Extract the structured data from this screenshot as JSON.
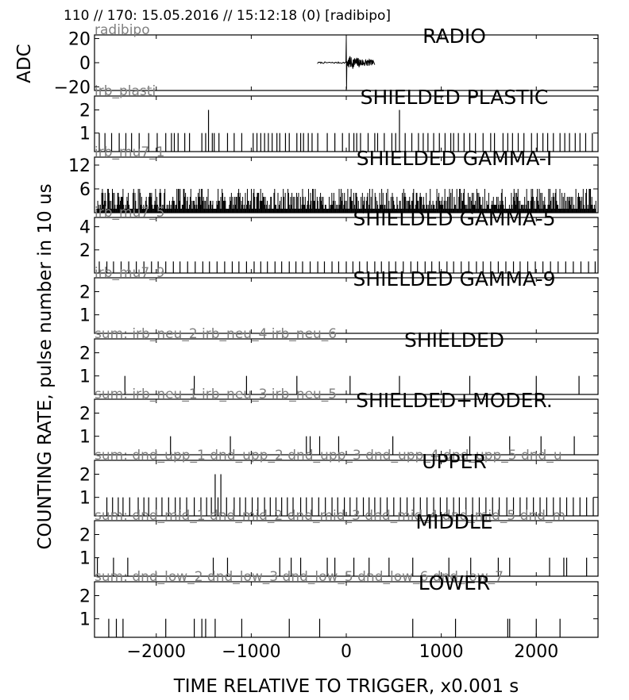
{
  "header": {
    "title": "110 // 170:   15.05.2016 // 15:12:18 (0)  [radibipo]"
  },
  "axes": {
    "ylabel_top": "ADC",
    "ylabel_main": "COUNTING RATE,   pulse number in 10 us",
    "xlabel": "TIME RELATIVE TO TRIGGER,   x0.001 s",
    "xlim": [
      -2650,
      2650
    ],
    "xticks": [
      -2000,
      -1000,
      0,
      1000,
      2000
    ],
    "xtick_labels": [
      "−2000",
      "−1000",
      "0",
      "1000",
      "2000"
    ]
  },
  "colors": {
    "trace": "#000000",
    "subtitle": "#808080",
    "frame": "#000000"
  },
  "chart_data": [
    {
      "type": "line",
      "title": "RADIO",
      "subtitle": "radibipo",
      "ylim": [
        -23,
        23
      ],
      "yticks": [
        20,
        0,
        -20
      ],
      "ytick_labels": [
        "20",
        "0",
        "−20"
      ],
      "signal": {
        "baseline_start": -300,
        "pulse_time": 0,
        "pulse_peak": 20,
        "pulse_trough": -22,
        "end": 300,
        "noise_amplitude": 6
      }
    },
    {
      "type": "bar",
      "title": "SHIELDED PLASTIC",
      "subtitle": "irb_plasti",
      "ylim": [
        0.2,
        2.6
      ],
      "yticks": [
        2,
        1
      ],
      "ytick_labels": [
        "2",
        "1"
      ],
      "events": [
        -2600,
        -2540,
        -2470,
        -2390,
        -2320,
        -2260,
        -2180,
        -2080,
        -1990,
        -1900,
        -1840,
        -1810,
        -1770,
        -1700,
        -1650,
        -1520,
        -1480,
        -1450,
        -1410,
        -1390,
        -1340,
        -1250,
        -1180,
        -1100,
        -980,
        -940,
        -900,
        -860,
        -820,
        -780,
        -730,
        -700,
        -640,
        -600,
        -520,
        -480,
        -450,
        -400,
        -360,
        -300,
        -200,
        -120,
        -40,
        30,
        80,
        110,
        150,
        230,
        300,
        330,
        400,
        480,
        520,
        560,
        620,
        690,
        760,
        810,
        860,
        920,
        980,
        1040,
        1100,
        1130,
        1180,
        1240,
        1300,
        1360,
        1440,
        1520,
        1560,
        1650,
        1700,
        1750,
        1810,
        1870,
        1950,
        2010,
        2070,
        2120,
        2180,
        2250,
        2300,
        2350,
        2410,
        2460,
        2520,
        2590
      ],
      "doubles": [
        -1450,
        -720,
        560,
        1530,
        2310
      ]
    },
    {
      "type": "bar",
      "title": "SHIELDED GAMMA-I",
      "subtitle": "irb_mu7_1",
      "ylim": [
        0,
        14
      ],
      "yticks": [
        12,
        6
      ],
      "ytick_labels": [
        "12",
        "6"
      ],
      "dense": {
        "step": 7,
        "max": 6
      }
    },
    {
      "type": "bar",
      "title": "SHIELDED GAMMA-5",
      "subtitle": "irb_mu7_5",
      "ylim": [
        0,
        4.8
      ],
      "yticks": [
        4,
        2
      ],
      "ytick_labels": [
        "4",
        "2"
      ],
      "events": [
        -2600,
        -2520,
        -2450,
        -2370,
        -2290,
        -2210,
        -2130,
        -2050,
        -1980,
        -1900,
        -1820,
        -1750,
        -1670,
        -1590,
        -1510,
        -1440,
        -1360,
        -1280,
        -1200,
        -1130,
        -1050,
        -970,
        -900,
        -830,
        -750,
        -680,
        -600,
        -530,
        -460,
        -380,
        -300,
        -230,
        -150,
        -80,
        0,
        70,
        140,
        220,
        300,
        370,
        450,
        520,
        600,
        680,
        750,
        830,
        900,
        980,
        1060,
        1130,
        1210,
        1290,
        1370,
        1440,
        1520,
        1600,
        1680,
        1760,
        1830,
        1910,
        1990,
        2070,
        2150,
        2230,
        2310,
        2390,
        2470,
        2550,
        2620
      ]
    },
    {
      "type": "bar",
      "title": "SHIELDED GAMMA-9",
      "subtitle": "irb_mu7_9",
      "ylim": [
        0.2,
        2.6
      ],
      "yticks": [
        2,
        1
      ],
      "ytick_labels": [
        "2",
        "1"
      ],
      "events": []
    },
    {
      "type": "bar",
      "title": "SHIELDED",
      "subtitle": "sum: irb_neu_2 irb_neu_4 irb_neu_6",
      "ylim": [
        0.2,
        2.6
      ],
      "yticks": [
        2,
        1
      ],
      "ytick_labels": [
        "2",
        "1"
      ],
      "events": [
        -2330,
        -1600,
        -1050,
        -520,
        40,
        560,
        1300,
        2000,
        2450
      ]
    },
    {
      "type": "bar",
      "title": "SHIELDED+MODER.",
      "subtitle": "sum: irb_neu_1 irb_neu_3 irb_neu_5",
      "ylim": [
        0.2,
        2.6
      ],
      "yticks": [
        2,
        1
      ],
      "ytick_labels": [
        "2",
        "1"
      ],
      "events": [
        -1850,
        -1220,
        -420,
        -380,
        -280,
        -80,
        490,
        1300,
        1720,
        2050,
        2400
      ]
    },
    {
      "type": "bar",
      "title": "UPPER",
      "subtitle": "sum: dnd_upp_1 dnd_upp_2 dnd_upp_3 dnd_upp_4 dnd_upp_5 dnd_u",
      "ylim": [
        0.2,
        2.6
      ],
      "yticks": [
        2,
        1
      ],
      "ytick_labels": [
        "2",
        "1"
      ],
      "events": [
        -2520,
        -2460,
        -2400,
        -2350,
        -2280,
        -2190,
        -2130,
        -2080,
        -2000,
        -1940,
        -1870,
        -1800,
        -1750,
        -1680,
        -1600,
        -1530,
        -1470,
        -1420,
        -1380,
        -1350,
        -1320,
        -1260,
        -1180,
        -1120,
        -1060,
        -990,
        -930,
        -860,
        -800,
        -740,
        -680,
        -620,
        -560,
        -480,
        -420,
        -360,
        -290,
        -220,
        -150,
        -90,
        -20,
        40,
        110,
        180,
        240,
        300,
        360,
        430,
        500,
        570,
        640,
        710,
        780,
        850,
        920,
        990,
        1060,
        1130,
        1190,
        1260,
        1330,
        1400,
        1470,
        1540,
        1610,
        1690,
        1760,
        1830,
        1900,
        1970,
        2040,
        2110,
        2180,
        2250,
        2320,
        2390,
        2460,
        2530,
        2600
      ],
      "doubles": [
        -1380,
        -1320,
        -1200,
        2580
      ]
    },
    {
      "type": "bar",
      "title": "MIDDLE",
      "subtitle": "sum: dnd_mid_1 dnd_mid_2 dnd_mid_3 dnd_mid_4 dnd_mid_5 dnd_m",
      "ylim": [
        0.2,
        2.6
      ],
      "yticks": [
        2,
        1
      ],
      "ytick_labels": [
        "2",
        "1"
      ],
      "events": [
        -2620,
        -2450,
        -2300,
        -1400,
        -1250,
        -700,
        -580,
        -480,
        -200,
        -120,
        80,
        240,
        450,
        700,
        1080,
        1310,
        1600,
        1720,
        2140,
        2290,
        2320,
        2530
      ]
    },
    {
      "type": "bar",
      "title": "LOWER",
      "subtitle": "sum: dnd_low_2 dnd_low_3 dnd_low_5 dnd_low_6 dnd_low_7",
      "ylim": [
        0.2,
        2.6
      ],
      "yticks": [
        2,
        1
      ],
      "ytick_labels": [
        "2",
        "1"
      ],
      "events": [
        -2500,
        -2420,
        -2350,
        -1900,
        -1600,
        -1520,
        -1480,
        -1380,
        -1100,
        -600,
        -280,
        700,
        1150,
        1700,
        1720,
        2000,
        2250
      ]
    }
  ]
}
